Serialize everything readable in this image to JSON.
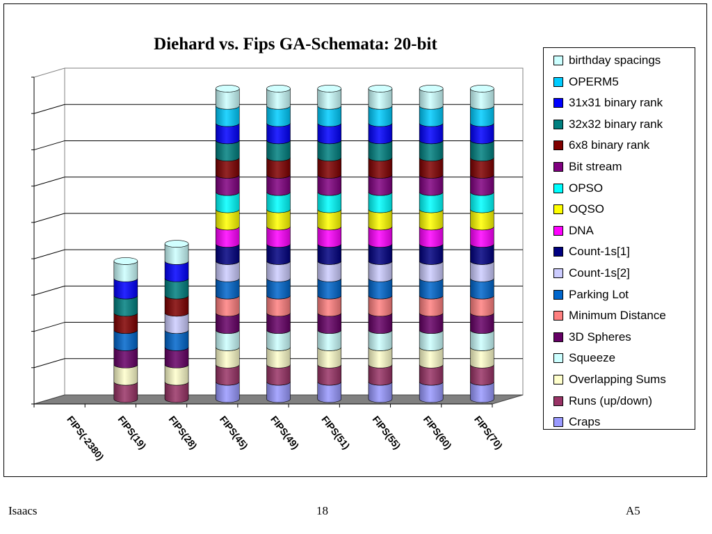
{
  "chart_data": {
    "type": "bar",
    "stacked": true,
    "three_d": true,
    "title": "Diehard vs. Fips GA-Schemata:  20-bit",
    "categories": [
      "FIPS(-2380)",
      "FIPS(19)",
      "FIPS(28)",
      "FIPS(45)",
      "FIPS(49)",
      "FIPS(51)",
      "FIPS(55)",
      "FIPS(60)",
      "FIPS(70)"
    ],
    "legend_position": "right",
    "grid": true,
    "ylim": [
      0,
      18
    ],
    "y_tick_labels_shown": false,
    "series": [
      {
        "name": "Craps",
        "color": "#9999ff",
        "values": [
          0,
          0,
          0,
          1,
          1,
          1,
          1,
          1,
          1
        ]
      },
      {
        "name": "Runs (up/down)",
        "color": "#993366",
        "values": [
          0,
          1,
          1,
          1,
          1,
          1,
          1,
          1,
          1
        ]
      },
      {
        "name": "Overlapping Sums",
        "color": "#ffffcc",
        "values": [
          0,
          1,
          1,
          1,
          1,
          1,
          1,
          1,
          1
        ]
      },
      {
        "name": "Squeeze",
        "color": "#ccffff",
        "values": [
          0,
          0,
          0,
          1,
          1,
          1,
          1,
          1,
          1
        ]
      },
      {
        "name": "3D Spheres",
        "color": "#660066",
        "values": [
          0,
          1,
          1,
          1,
          1,
          1,
          1,
          1,
          1
        ]
      },
      {
        "name": "Minimum Distance",
        "color": "#ff8080",
        "values": [
          0,
          0,
          0,
          1,
          1,
          1,
          1,
          1,
          1
        ]
      },
      {
        "name": "Parking Lot",
        "color": "#0066cc",
        "values": [
          0,
          1,
          1,
          1,
          1,
          1,
          1,
          1,
          1
        ]
      },
      {
        "name": "Count-1s[2]",
        "color": "#ccccff",
        "values": [
          0,
          0,
          1,
          1,
          1,
          1,
          1,
          1,
          1
        ]
      },
      {
        "name": "Count-1s[1]",
        "color": "#000080",
        "values": [
          0,
          0,
          0,
          1,
          1,
          1,
          1,
          1,
          1
        ]
      },
      {
        "name": "DNA",
        "color": "#ff00ff",
        "values": [
          0,
          0,
          0,
          1,
          1,
          1,
          1,
          1,
          1
        ]
      },
      {
        "name": "OQSO",
        "color": "#ffff00",
        "values": [
          0,
          0,
          0,
          1,
          1,
          1,
          1,
          1,
          1
        ]
      },
      {
        "name": "OPSO",
        "color": "#00ffff",
        "values": [
          0,
          0,
          0,
          1,
          1,
          1,
          1,
          1,
          1
        ]
      },
      {
        "name": "Bit stream",
        "color": "#800080",
        "values": [
          0,
          0,
          0,
          1,
          1,
          1,
          1,
          1,
          1
        ]
      },
      {
        "name": "6x8 binary rank",
        "color": "#800000",
        "values": [
          0,
          1,
          1,
          1,
          1,
          1,
          1,
          1,
          1
        ]
      },
      {
        "name": "32x32 binary rank",
        "color": "#008080",
        "values": [
          0,
          1,
          1,
          1,
          1,
          1,
          1,
          1,
          1
        ]
      },
      {
        "name": "31x31 binary rank",
        "color": "#0000ff",
        "values": [
          0,
          1,
          1,
          1,
          1,
          1,
          1,
          1,
          1
        ]
      },
      {
        "name": "OPERM5",
        "color": "#00ccff",
        "values": [
          0,
          0,
          0,
          1,
          1,
          1,
          1,
          1,
          1
        ]
      },
      {
        "name": "birthday spacings",
        "color": "#ccffff",
        "values": [
          0,
          1,
          1,
          1,
          1,
          1,
          1,
          1,
          1
        ]
      }
    ]
  },
  "footer": {
    "left": "Isaacs",
    "center": "18",
    "right": "A5"
  }
}
